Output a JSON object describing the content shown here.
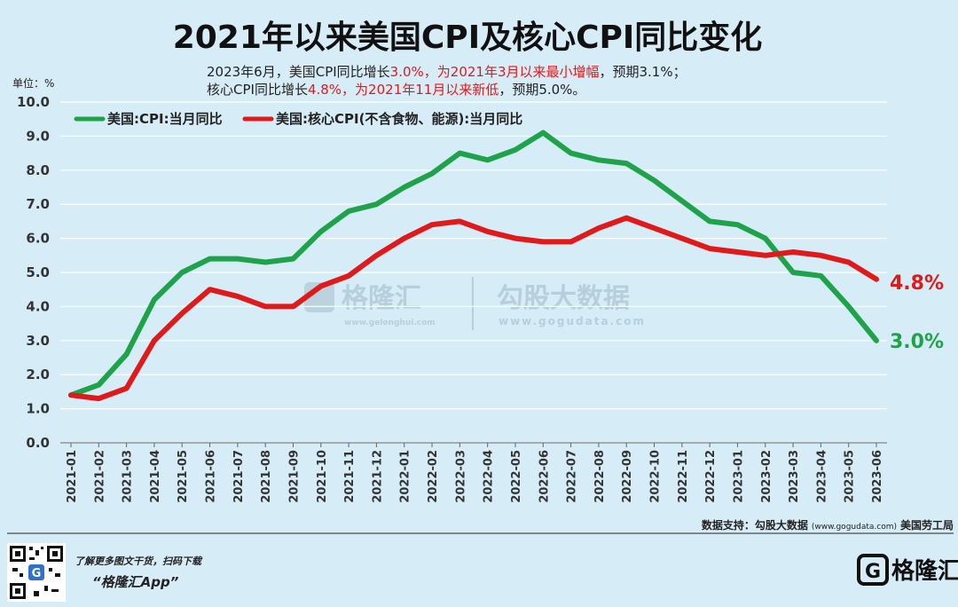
{
  "title": "2021年以来美国CPI及核心CPI同比变化",
  "subtitle": {
    "line1": [
      {
        "text": "2023年6月，美国CPI同比增长",
        "color": "#222222"
      },
      {
        "text": "3.0%，为2021年3月以来最小增幅",
        "color": "#e01a1a"
      },
      {
        "text": "，预期3.1%；",
        "color": "#222222"
      }
    ],
    "line2": [
      {
        "text": "核心CPI同比增长",
        "color": "#222222"
      },
      {
        "text": "4.8%，为2021年11月以来新低",
        "color": "#e01a1a"
      },
      {
        "text": "，预期5.0%。",
        "color": "#222222"
      }
    ]
  },
  "unit_label": "单位：%",
  "watermark": {
    "brand": "格隆汇",
    "brand_url": "www.gelonghui.com",
    "data_brand": "勾股大数据",
    "data_url": "www.gogudata.com"
  },
  "source": {
    "label": "数据支持：勾股大数据",
    "url": "(www.gogudata.com)",
    "org": "美国劳工局"
  },
  "footer": {
    "tagline": "了解更多图文干货，扫码下载",
    "app": "“格隆汇App”",
    "brand": "格隆汇",
    "logo_letter": "G"
  },
  "colors": {
    "background": "#d6ecf6",
    "cpi": "#1fa34a",
    "core": "#e01a1a",
    "grid": "#ffffff"
  },
  "chart_data": {
    "type": "line",
    "title": "2021年以来美国CPI及核心CPI同比变化",
    "xlabel": "",
    "ylabel": "单位：%",
    "ylim": [
      0,
      10
    ],
    "yticks": [
      "0.0",
      "1.0",
      "2.0",
      "3.0",
      "4.0",
      "5.0",
      "6.0",
      "7.0",
      "8.0",
      "9.0",
      "10.0"
    ],
    "grid": true,
    "legend_position": "top-left",
    "categories": [
      "2021-01",
      "2021-02",
      "2021-03",
      "2021-04",
      "2021-05",
      "2021-06",
      "2021-07",
      "2021-08",
      "2021-09",
      "2021-10",
      "2021-11",
      "2021-12",
      "2022-01",
      "2022-02",
      "2022-03",
      "2022-04",
      "2022-05",
      "2022-06",
      "2022-07",
      "2022-08",
      "2022-09",
      "2022-10",
      "2022-11",
      "2022-12",
      "2023-01",
      "2023-02",
      "2023-03",
      "2023-04",
      "2023-05",
      "2023-06"
    ],
    "series": [
      {
        "name": "美国:CPI:当月同比",
        "color": "#1fa34a",
        "end_label": "3.0%",
        "values": [
          1.4,
          1.7,
          2.6,
          4.2,
          5.0,
          5.4,
          5.4,
          5.3,
          5.4,
          6.2,
          6.8,
          7.0,
          7.5,
          7.9,
          8.5,
          8.3,
          8.6,
          9.1,
          8.5,
          8.3,
          8.2,
          7.7,
          7.1,
          6.5,
          6.4,
          6.0,
          5.0,
          4.9,
          4.0,
          3.0
        ]
      },
      {
        "name": "美国:核心CPI(不含食物、能源):当月同比",
        "color": "#e01a1a",
        "end_label": "4.8%",
        "values": [
          1.4,
          1.3,
          1.6,
          3.0,
          3.8,
          4.5,
          4.3,
          4.0,
          4.0,
          4.6,
          4.9,
          5.5,
          6.0,
          6.4,
          6.5,
          6.2,
          6.0,
          5.9,
          5.9,
          6.3,
          6.6,
          6.3,
          6.0,
          5.7,
          5.6,
          5.5,
          5.6,
          5.5,
          5.3,
          4.8
        ]
      }
    ]
  }
}
